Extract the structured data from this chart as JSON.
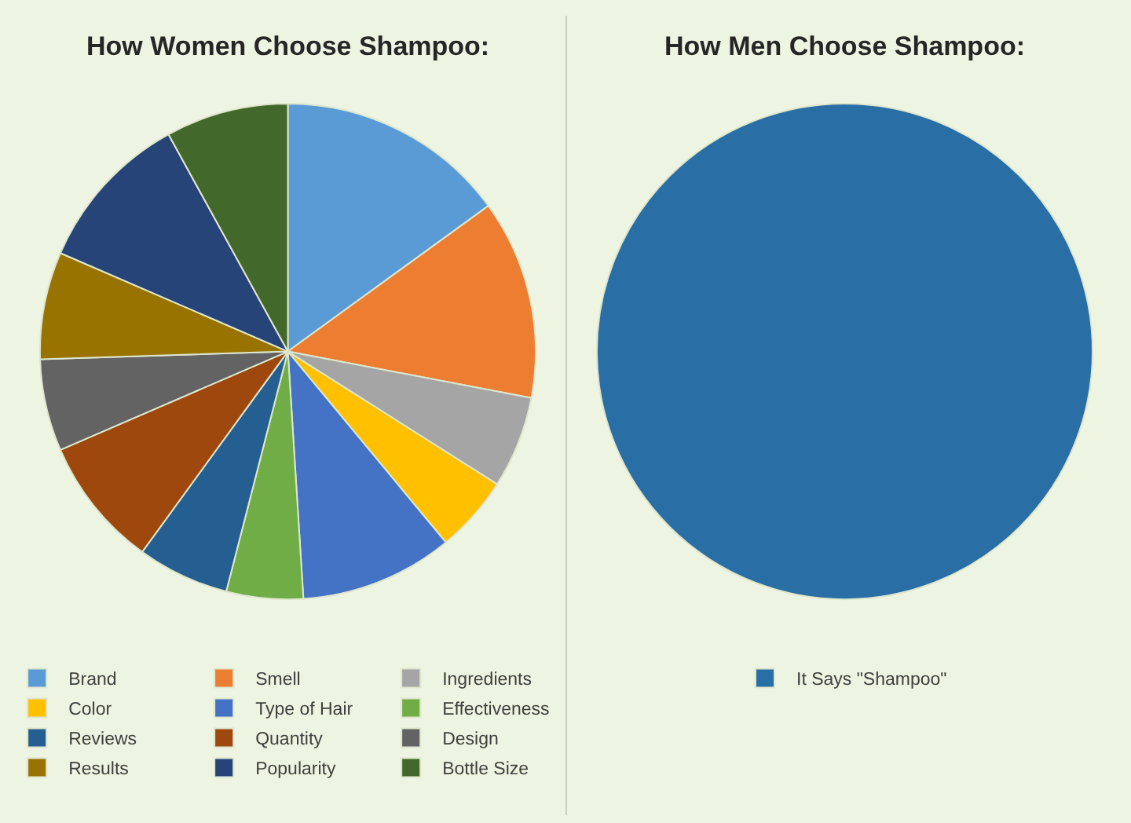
{
  "chart_data": [
    {
      "type": "pie",
      "title": "How Women Choose Shampoo:",
      "categories": [
        "Brand",
        "Smell",
        "Ingredients",
        "Color",
        "Type of Hair",
        "Effectiveness",
        "Reviews",
        "Quantity",
        "Design",
        "Results",
        "Popularity",
        "Bottle Size"
      ],
      "values": [
        15,
        13,
        6,
        5,
        10,
        5,
        6,
        8.5,
        6,
        7,
        10.5,
        8
      ],
      "colors": [
        "#5b9bd5",
        "#ed7d31",
        "#a5a5a5",
        "#ffc000",
        "#4472c4",
        "#70ad47",
        "#255e91",
        "#9e480e",
        "#636363",
        "#997300",
        "#264478",
        "#43682b"
      ],
      "legend": "bottom"
    },
    {
      "type": "pie",
      "title": "How Men Choose Shampoo:",
      "categories": [
        "It Says \"Shampoo\""
      ],
      "values": [
        100
      ],
      "colors": [
        "#2a6ea6"
      ],
      "legend": "bottom"
    }
  ]
}
